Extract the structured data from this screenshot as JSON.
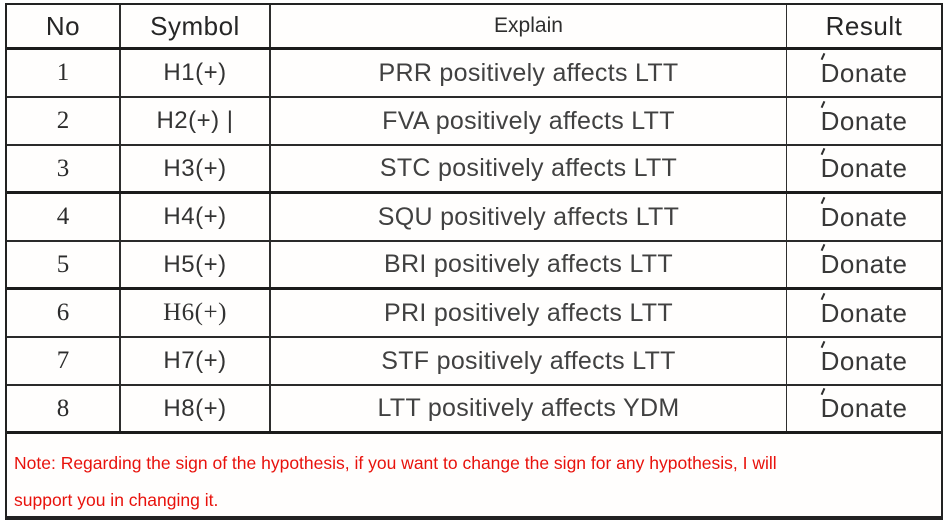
{
  "table": {
    "headers": {
      "no": "No",
      "symbol": "Symbol",
      "explain": "Explain",
      "result": "Result"
    },
    "rows": [
      {
        "no": "1",
        "symbol": "H1(+)",
        "explain": "PRR positively affects LTT",
        "result": "Donate"
      },
      {
        "no": "2",
        "symbol": "H2(+) |",
        "explain": "FVA positively affects LTT",
        "result": "Donate"
      },
      {
        "no": "3",
        "symbol": "H3(+)",
        "explain": "STC positively affects LTT",
        "result": "Donate"
      },
      {
        "no": "4",
        "symbol": "H4(+)",
        "explain": "SQU positively affects LTT",
        "result": "Donate"
      },
      {
        "no": "5",
        "symbol": "H5(+)",
        "explain": "BRI positively affects LTT",
        "result": "Donate"
      },
      {
        "no": "6",
        "symbol": "H6(+)",
        "explain": "PRI positively affects LTT",
        "result": "Donate"
      },
      {
        "no": "7",
        "symbol": "H7(+)",
        "explain": "STF positively affects LTT",
        "result": "Donate"
      },
      {
        "no": "8",
        "symbol": "H8(+)",
        "explain": "LTT positively affects YDM",
        "result": "Donate"
      }
    ]
  },
  "note": {
    "line1": "Note: Regarding the sign of the hypothesis, if you want to change the sign for any hypothesis, I will",
    "line2": "support you in changing it."
  },
  "colors": {
    "note_red": "#e8120c",
    "border": "#222222",
    "body_text": "#3c3c3c"
  }
}
